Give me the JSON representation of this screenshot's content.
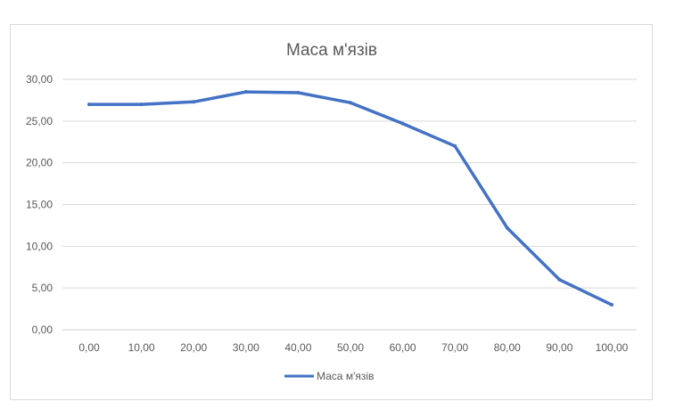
{
  "chart_data": {
    "type": "line",
    "title": "Маса м'язів",
    "x": [
      0,
      10,
      20,
      30,
      40,
      50,
      60,
      70,
      80,
      90,
      100
    ],
    "x_tick_labels": [
      "0,00",
      "10,00",
      "20,00",
      "30,00",
      "40,00",
      "50,00",
      "60,00",
      "70,00",
      "80,00",
      "90,00",
      "100,00"
    ],
    "y_ticks": [
      0,
      5,
      10,
      15,
      20,
      25,
      30
    ],
    "y_tick_labels": [
      "0,00",
      "5,00",
      "10,00",
      "15,00",
      "20,00",
      "25,00",
      "30,00"
    ],
    "ylim": [
      0,
      30
    ],
    "grid": true,
    "legend_position": "bottom",
    "series": [
      {
        "name": "Маса м'язів",
        "color": "#4472c4",
        "values": [
          27.0,
          27.0,
          27.3,
          28.5,
          28.4,
          27.2,
          24.7,
          22.0,
          12.2,
          6.0,
          3.0
        ]
      }
    ]
  }
}
